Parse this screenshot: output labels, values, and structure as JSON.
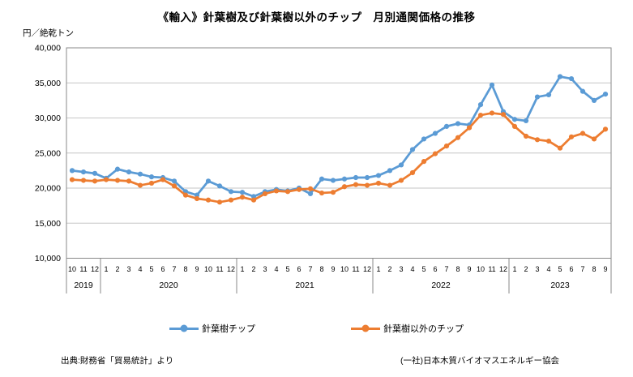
{
  "title": "《輸入》針葉樹及び針葉樹以外のチップ　月別通関価格の推移",
  "y_axis_unit": "円／絶乾トン",
  "source_left": "出典:財務省「貿易統計」より",
  "source_right": "(一社)日本木質バイオマスエネルギー協会",
  "legend": [
    {
      "label": "針葉樹チップ",
      "color": "#5B9BD5"
    },
    {
      "label": "針葉樹以外のチップ",
      "color": "#ED7D31"
    }
  ],
  "chart_data": {
    "type": "line",
    "title": "《輸入》針葉樹及び針葉樹以外のチップ　月別通関価格の推移",
    "ylabel": "円／絶乾トン",
    "ylim": [
      10000,
      40000
    ],
    "y_ticks": [
      10000,
      15000,
      20000,
      25000,
      30000,
      35000,
      40000
    ],
    "grid": "horizontal",
    "legend_position": "bottom",
    "x_groups": [
      {
        "year": "2019",
        "months": [
          10,
          11,
          12
        ]
      },
      {
        "year": "2020",
        "months": [
          1,
          2,
          3,
          4,
          5,
          6,
          7,
          8,
          9,
          10,
          11,
          12
        ]
      },
      {
        "year": "2021",
        "months": [
          1,
          2,
          3,
          4,
          5,
          6,
          7,
          8,
          9,
          10,
          11,
          12
        ]
      },
      {
        "year": "2022",
        "months": [
          1,
          2,
          3,
          4,
          5,
          6,
          7,
          8,
          9,
          10,
          11,
          12
        ]
      },
      {
        "year": "2023",
        "months": [
          1,
          2,
          3,
          4,
          5,
          6,
          7,
          8,
          9
        ]
      }
    ],
    "series": [
      {
        "name": "針葉樹チップ",
        "color": "#5B9BD5",
        "values": [
          22500,
          22300,
          22100,
          21400,
          22700,
          22300,
          22000,
          21600,
          21500,
          21000,
          19500,
          19000,
          21000,
          20300,
          19500,
          19400,
          18800,
          19500,
          19800,
          19600,
          20000,
          19200,
          21300,
          21100,
          21300,
          21500,
          21500,
          21800,
          22500,
          23300,
          25500,
          27000,
          27800,
          28800,
          29200,
          29000,
          31900,
          34700,
          30900,
          29800,
          29600,
          33000,
          33300,
          35900,
          35600,
          33800,
          32500,
          33400
        ]
      },
      {
        "name": "針葉樹以外のチップ",
        "color": "#ED7D31",
        "values": [
          21200,
          21100,
          21000,
          21200,
          21100,
          21000,
          20400,
          20700,
          21200,
          20300,
          19000,
          18500,
          18300,
          18000,
          18300,
          18700,
          18300,
          19200,
          19600,
          19500,
          19800,
          19900,
          19300,
          19400,
          20200,
          20500,
          20400,
          20700,
          20400,
          21100,
          22200,
          23800,
          24900,
          26000,
          27200,
          28600,
          30400,
          30700,
          30500,
          28800,
          27400,
          26900,
          26700,
          25700,
          27300,
          27800,
          27000,
          28400
        ]
      }
    ]
  }
}
